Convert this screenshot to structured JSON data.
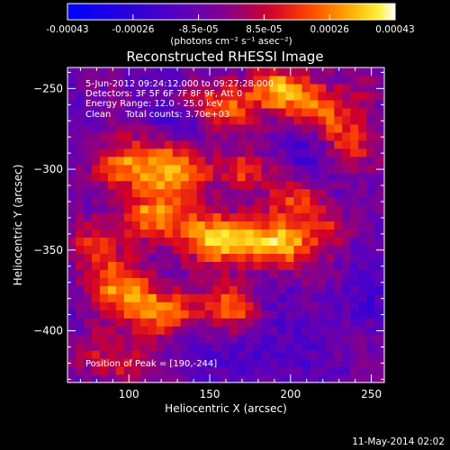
{
  "chart_data": {
    "type": "heatmap",
    "title": "Reconstructed RHESSI Image",
    "xlabel": "Heliocentric X (arcsec)",
    "ylabel": "Heliocentric Y (arcsec)",
    "xlim": [
      62,
      258
    ],
    "ylim": [
      -432,
      -237
    ],
    "x_ticks": [
      100,
      150,
      200,
      250
    ],
    "y_ticks": [
      -250,
      -300,
      -350,
      -400
    ],
    "grid": false,
    "colorbar": {
      "location": "top",
      "vmin": -0.00043,
      "vmax": 0.00043,
      "tick_labels": [
        "-0.00043",
        "-0.00026",
        "-8.5e-05",
        "8.5e-05",
        "0.00026",
        "0.00043"
      ],
      "unit_label": "(photons cm⁻² s⁻¹ asec⁻²)"
    },
    "annotations": [
      "5-Jun-2012 09:24:12.000 to 09:27:28.000",
      "Detectors: 3F 5F 6F 7F 8F 9F, Att 0",
      "Energy Range: 12.0 - 25.0 keV",
      "Clean     Total counts: 3.70e+03"
    ],
    "peak_label": "Position of Peak = [190,-244]",
    "peak_position": [
      190,
      -244
    ],
    "blobs": [
      {
        "x": 192,
        "y": -250,
        "value": 0.00043,
        "sx": 14,
        "sy": 10
      },
      {
        "x": 215,
        "y": -263,
        "value": 0.0003,
        "sx": 13,
        "sy": 9
      },
      {
        "x": 160,
        "y": -262,
        "value": 0.00026,
        "sx": 12,
        "sy": 9
      },
      {
        "x": 235,
        "y": -283,
        "value": 0.00024,
        "sx": 11,
        "sy": 12
      },
      {
        "x": 95,
        "y": -298,
        "value": 0.00032,
        "sx": 15,
        "sy": 11
      },
      {
        "x": 131,
        "y": -300,
        "value": 0.0004,
        "sx": 15,
        "sy": 12
      },
      {
        "x": 170,
        "y": -302,
        "value": 0.00023,
        "sx": 11,
        "sy": 9
      },
      {
        "x": 205,
        "y": -318,
        "value": 0.00024,
        "sx": 12,
        "sy": 10
      },
      {
        "x": 112,
        "y": -330,
        "value": 0.00036,
        "sx": 17,
        "sy": 11
      },
      {
        "x": 158,
        "y": -342,
        "value": 0.00043,
        "sx": 16,
        "sy": 12
      },
      {
        "x": 192,
        "y": -346,
        "value": 0.00041,
        "sx": 15,
        "sy": 11
      },
      {
        "x": 226,
        "y": -336,
        "value": 0.0002,
        "sx": 11,
        "sy": 9
      },
      {
        "x": 96,
        "y": -372,
        "value": 0.00034,
        "sx": 14,
        "sy": 13
      },
      {
        "x": 122,
        "y": -388,
        "value": 0.00038,
        "sx": 15,
        "sy": 10
      },
      {
        "x": 164,
        "y": -385,
        "value": 0.00028,
        "sx": 12,
        "sy": 9
      },
      {
        "x": 80,
        "y": -348,
        "value": 0.00022,
        "sx": 10,
        "sy": 9
      },
      {
        "x": 98,
        "y": -422,
        "value": 0.0002,
        "sx": 14,
        "sy": 7
      },
      {
        "x": 76,
        "y": -412,
        "value": 0.00018,
        "sx": 10,
        "sy": 10
      },
      {
        "x": 140,
        "y": -255,
        "value": 0.00012,
        "sx": 9,
        "sy": 8
      },
      {
        "x": 247,
        "y": -250,
        "value": 0.00014,
        "sx": 9,
        "sy": 8
      },
      {
        "x": 243,
        "y": -385,
        "value": -0.0001,
        "sx": 12,
        "sy": 12
      },
      {
        "x": 180,
        "y": -415,
        "value": -0.00012,
        "sx": 14,
        "sy": 12
      },
      {
        "x": 130,
        "y": -270,
        "value": -0.0001,
        "sx": 10,
        "sy": 8
      },
      {
        "x": 210,
        "y": -292,
        "value": -8e-05,
        "sx": 10,
        "sy": 8
      }
    ],
    "background_value": -9e-05
  },
  "timestamp": "11-May-2014 02:02"
}
